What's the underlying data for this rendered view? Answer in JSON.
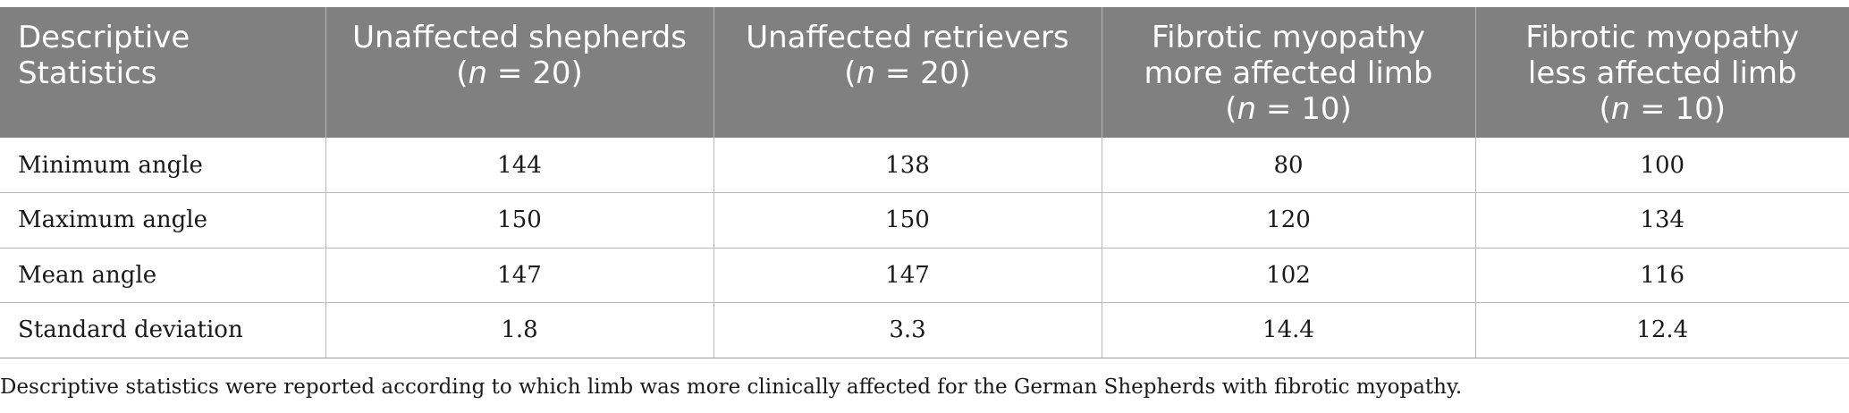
{
  "table": {
    "headers": [
      {
        "label": "Descriptive Statistics",
        "n_prefix": "",
        "n_var": "",
        "n_suffix": ""
      },
      {
        "label": "Unaffected shepherds",
        "n_prefix": "(",
        "n_var": "n",
        "n_suffix": " = 20)"
      },
      {
        "label": "Unaffected retrievers",
        "n_prefix": "(",
        "n_var": "n",
        "n_suffix": " = 20)"
      },
      {
        "label": "Fibrotic myopathy more affected limb",
        "n_prefix": "(",
        "n_var": "n",
        "n_suffix": " = 10)"
      },
      {
        "label": "Fibrotic myopathy less affected limb",
        "n_prefix": "(",
        "n_var": "n",
        "n_suffix": " = 10)"
      }
    ],
    "rows": [
      {
        "label": "Minimum angle",
        "values": [
          "144",
          "138",
          "80",
          "100"
        ]
      },
      {
        "label": "Maximum angle",
        "values": [
          "150",
          "150",
          "120",
          "134"
        ]
      },
      {
        "label": "Mean angle",
        "values": [
          "147",
          "147",
          "102",
          "116"
        ]
      },
      {
        "label": "Standard deviation",
        "values": [
          "1.8",
          "3.3",
          "14.4",
          "12.4"
        ]
      }
    ]
  },
  "footnote": "Descriptive statistics were reported according to which limb was more clinically affected for the German Shepherds with fibrotic myopathy.",
  "colors": {
    "header_bg": "#808080",
    "header_text": "#ffffff",
    "grid": "#b8b8b8"
  }
}
